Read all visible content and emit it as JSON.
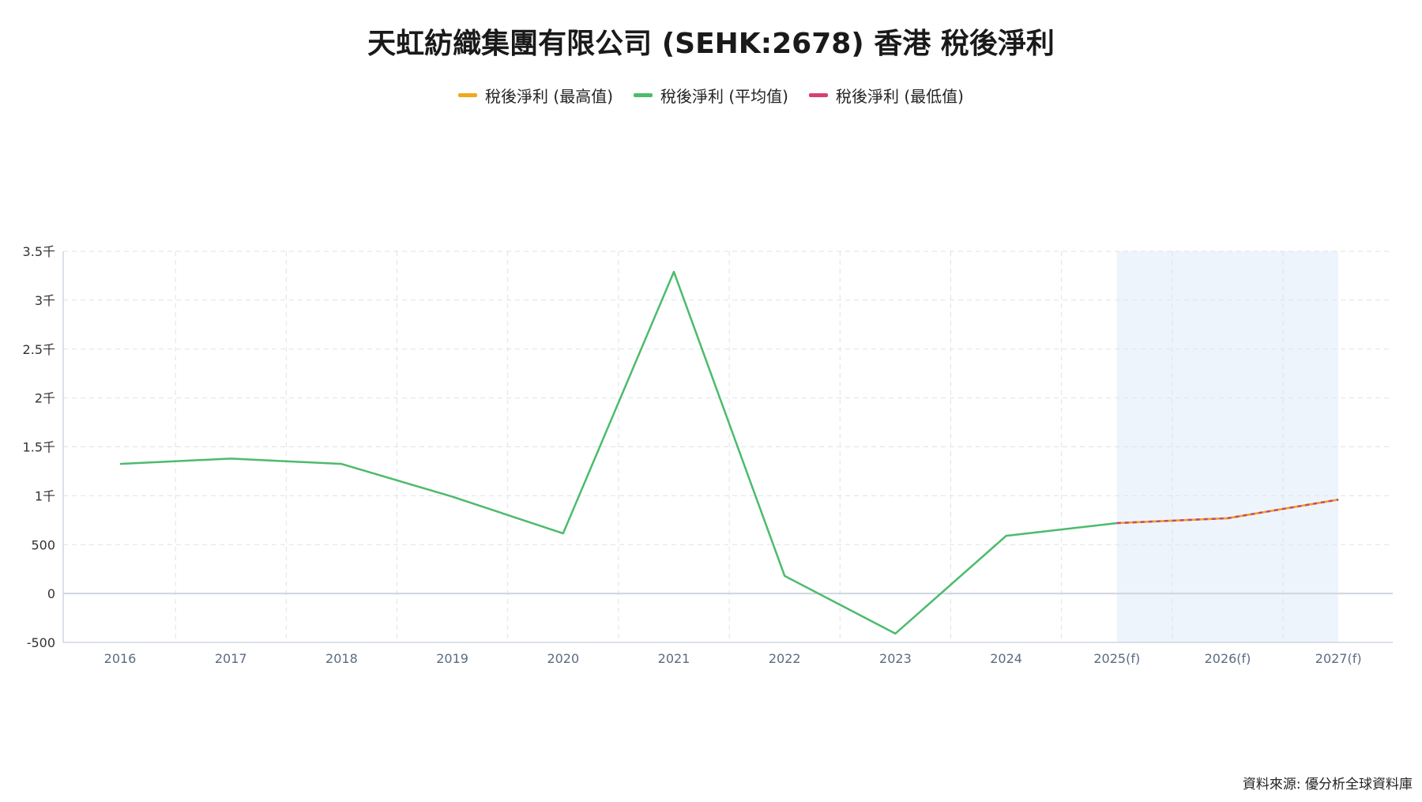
{
  "chart_data": {
    "type": "line",
    "title": "天虹紡織集團有限公司 (SEHK:2678) 香港 稅後淨利",
    "xlabel": "",
    "ylabel": "",
    "categories": [
      "2016",
      "2017",
      "2018",
      "2019",
      "2020",
      "2021",
      "2022",
      "2023",
      "2024",
      "2025(f)",
      "2026(f)",
      "2027(f)"
    ],
    "forecast_start_category": "2025(f)",
    "ylim": [
      -500,
      3500
    ],
    "yticks": [
      {
        "value": 3500,
        "label": "3.5千"
      },
      {
        "value": 3000,
        "label": "3千"
      },
      {
        "value": 2500,
        "label": "2.5千"
      },
      {
        "value": 2000,
        "label": "2千"
      },
      {
        "value": 1500,
        "label": "1.5千"
      },
      {
        "value": 1000,
        "label": "1千"
      },
      {
        "value": 500,
        "label": "500"
      },
      {
        "value": 0,
        "label": "0"
      },
      {
        "value": -500,
        "label": "-500"
      }
    ],
    "grid": true,
    "legend_position": "top-center",
    "series": [
      {
        "name": "稅後淨利 (最高值)",
        "color": "#f0a81c",
        "values": [
          null,
          null,
          null,
          null,
          null,
          null,
          null,
          null,
          null,
          720,
          770,
          960
        ]
      },
      {
        "name": "稅後淨利 (平均值)",
        "color": "#4cbb6c",
        "values": [
          1325,
          1380,
          1325,
          990,
          615,
          3290,
          180,
          -410,
          590,
          720,
          770,
          960
        ]
      },
      {
        "name": "稅後淨利 (最低值)",
        "color": "#d9406f",
        "values": [
          null,
          null,
          null,
          null,
          null,
          null,
          null,
          null,
          null,
          720,
          770,
          960
        ]
      }
    ]
  },
  "source_note": "資料來源: 優分析全球資料庫"
}
